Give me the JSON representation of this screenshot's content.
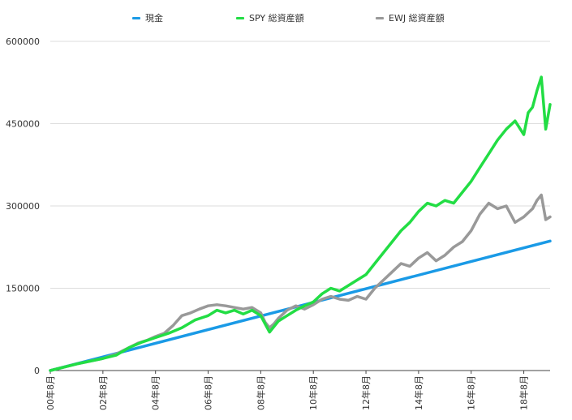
{
  "colors": {
    "cash": "#1a9ae6",
    "spy": "#22dd44",
    "ewj": "#999999",
    "grid": "#dddddd",
    "axis": "#444444",
    "text": "#333333"
  },
  "chart_data": {
    "type": "line",
    "xlabel": "",
    "ylabel": "",
    "ylim": [
      0,
      600000
    ],
    "yticks": [
      0,
      150000,
      300000,
      450000,
      600000
    ],
    "ytick_labels": [
      "0",
      "150000",
      "300000",
      "450000",
      "600000"
    ],
    "xticks": [
      0,
      24,
      48,
      72,
      96,
      120,
      144,
      168,
      192,
      216
    ],
    "xtick_labels": [
      "00年8月",
      "02年8月",
      "04年8月",
      "06年8月",
      "08年8月",
      "10年8月",
      "12年8月",
      "14年8月",
      "16年8月",
      "18年8月"
    ],
    "xlim": [
      0,
      228
    ],
    "grid": true,
    "legend_position": "top",
    "series": [
      {
        "name": "現金",
        "color": "#1a9ae6",
        "x": [
          0,
          228
        ],
        "y": [
          0,
          236000
        ]
      },
      {
        "name": "SPY 総資産額",
        "color": "#22dd44",
        "x": [
          0,
          12,
          24,
          30,
          36,
          42,
          48,
          54,
          60,
          66,
          72,
          76,
          80,
          84,
          88,
          92,
          96,
          98,
          100,
          102,
          104,
          108,
          112,
          116,
          120,
          124,
          128,
          132,
          136,
          140,
          144,
          148,
          152,
          156,
          160,
          164,
          168,
          172,
          176,
          180,
          184,
          188,
          192,
          196,
          200,
          204,
          208,
          212,
          216,
          218,
          220,
          222,
          224,
          226,
          228
        ],
        "y": [
          0,
          12000,
          22000,
          28000,
          42000,
          52000,
          60000,
          68000,
          78000,
          92000,
          100000,
          110000,
          105000,
          110000,
          103000,
          110000,
          100000,
          85000,
          70000,
          80000,
          90000,
          100000,
          110000,
          118000,
          125000,
          140000,
          150000,
          145000,
          155000,
          165000,
          175000,
          195000,
          215000,
          235000,
          255000,
          270000,
          290000,
          305000,
          300000,
          310000,
          305000,
          325000,
          345000,
          370000,
          395000,
          420000,
          440000,
          455000,
          430000,
          470000,
          480000,
          510000,
          535000,
          440000,
          485000
        ]
      },
      {
        "name": "EWJ 総資産額",
        "color": "#999999",
        "x": [
          0,
          12,
          24,
          30,
          36,
          40,
          44,
          48,
          52,
          56,
          60,
          64,
          68,
          72,
          76,
          80,
          84,
          88,
          92,
          96,
          98,
          100,
          102,
          104,
          108,
          112,
          116,
          120,
          124,
          128,
          132,
          136,
          140,
          144,
          148,
          152,
          156,
          160,
          164,
          168,
          172,
          176,
          180,
          184,
          188,
          192,
          196,
          200,
          204,
          208,
          212,
          216,
          220,
          222,
          224,
          226,
          228
        ],
        "y": [
          0,
          12000,
          22000,
          30000,
          42000,
          50000,
          55000,
          62000,
          68000,
          82000,
          100000,
          105000,
          112000,
          118000,
          120000,
          118000,
          115000,
          112000,
          115000,
          105000,
          88000,
          78000,
          85000,
          95000,
          110000,
          118000,
          112000,
          120000,
          130000,
          135000,
          130000,
          128000,
          135000,
          130000,
          150000,
          165000,
          180000,
          195000,
          190000,
          205000,
          215000,
          200000,
          210000,
          225000,
          235000,
          255000,
          285000,
          305000,
          295000,
          300000,
          270000,
          280000,
          295000,
          310000,
          320000,
          275000,
          280000
        ]
      }
    ]
  }
}
